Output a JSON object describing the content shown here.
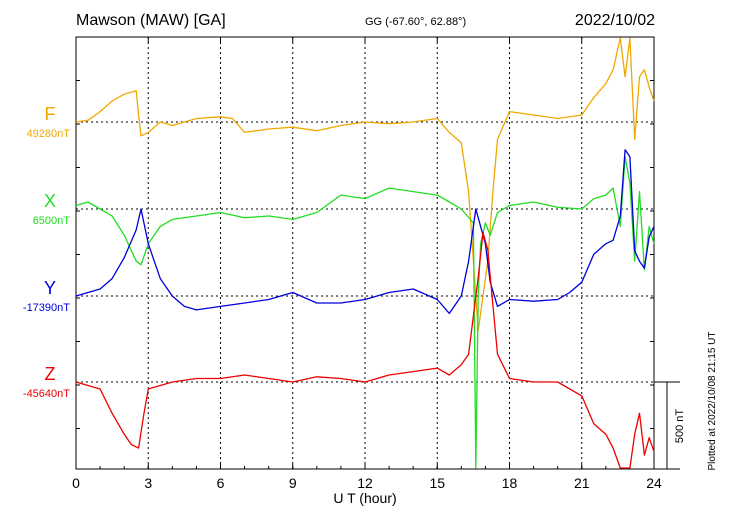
{
  "chart_data": {
    "type": "line",
    "title": "Mawson (MAW)  [GA]",
    "coords": "GG (-67.60°,  62.88°)",
    "date": "2022/10/02",
    "xlabel": "U T (hour)",
    "xlim": [
      0,
      24
    ],
    "xticks": [
      0,
      3,
      6,
      9,
      12,
      15,
      18,
      21,
      24
    ],
    "grid": true,
    "scale_bar": "500 nT",
    "footer": "Plotted at 2022/10/08 21:15 UT",
    "series": [
      {
        "name": "F",
        "baseline_label": "49280nT",
        "color": "#f0a800",
        "x": [
          0,
          0.5,
          1,
          1.5,
          2,
          2.5,
          2.6,
          2.7,
          3,
          3.5,
          4,
          5,
          6,
          6.5,
          7,
          8,
          9,
          10,
          11,
          12,
          13,
          14,
          15,
          15.5,
          16,
          16.3,
          16.5,
          16.7,
          16.9,
          17.1,
          17.3,
          17.5,
          18,
          19,
          20,
          21,
          21.5,
          22,
          22.3,
          22.6,
          22.8,
          23,
          23.2,
          23.4,
          23.6,
          23.8,
          24
        ],
        "values": [
          0,
          10,
          60,
          120,
          160,
          180,
          40,
          -80,
          -60,
          0,
          -20,
          20,
          30,
          20,
          -60,
          -40,
          -30,
          -50,
          -20,
          0,
          -10,
          0,
          20,
          -60,
          -120,
          -400,
          -800,
          -1200,
          -1000,
          -800,
          -420,
          -100,
          60,
          40,
          20,
          40,
          140,
          220,
          300,
          520,
          260,
          500,
          -100,
          260,
          300,
          200,
          120
        ]
      },
      {
        "name": "X",
        "baseline_label": "6500nT",
        "color": "#22dd22",
        "x": [
          0,
          0.5,
          1,
          1.5,
          2,
          2.5,
          2.7,
          3,
          3.5,
          4,
          5,
          6,
          7,
          8,
          9,
          10,
          11,
          12,
          13,
          14,
          15,
          15.5,
          16,
          16.5,
          16.6,
          16.7,
          16.8,
          17,
          17.2,
          17.5,
          18,
          19,
          20,
          21,
          21.5,
          22,
          22.3,
          22.6,
          22.8,
          23,
          23.2,
          23.4,
          23.6,
          23.8,
          24
        ],
        "values": [
          20,
          40,
          0,
          -40,
          -150,
          -300,
          -320,
          -200,
          -100,
          -60,
          -40,
          -20,
          -50,
          -40,
          -60,
          -20,
          80,
          60,
          120,
          100,
          80,
          40,
          0,
          -80,
          -1600,
          -500,
          -200,
          -80,
          -150,
          -20,
          20,
          40,
          10,
          0,
          60,
          80,
          120,
          -100,
          300,
          150,
          -300,
          100,
          -350,
          -100,
          -200
        ]
      },
      {
        "name": "Y",
        "baseline_label": "-17390nT",
        "color": "#0000dd",
        "x": [
          0,
          0.5,
          1,
          1.5,
          2,
          2.5,
          2.7,
          3,
          3.5,
          4,
          4.5,
          5,
          6,
          7,
          8,
          9,
          10,
          11,
          12,
          13,
          14,
          15,
          15.5,
          16,
          16.3,
          16.6,
          16.8,
          17,
          17.2,
          17.5,
          18,
          19,
          20,
          20.5,
          21,
          21.5,
          22,
          22.3,
          22.6,
          22.8,
          23,
          23.2,
          23.4,
          23.6,
          23.8,
          24
        ],
        "values": [
          0,
          20,
          40,
          100,
          220,
          380,
          500,
          300,
          100,
          0,
          -60,
          -80,
          -60,
          -40,
          -20,
          20,
          -40,
          -40,
          -20,
          20,
          40,
          -20,
          -100,
          0,
          200,
          500,
          400,
          300,
          80,
          -60,
          -20,
          -30,
          -20,
          20,
          80,
          240,
          300,
          320,
          460,
          840,
          800,
          260,
          200,
          160,
          340,
          400
        ]
      },
      {
        "name": "Z",
        "baseline_label": "-45640nT",
        "color": "#ee0000",
        "x": [
          0,
          0.5,
          1,
          1.5,
          2,
          2.3,
          2.6,
          2.8,
          3,
          3.5,
          4,
          5,
          6,
          7,
          8,
          9,
          10,
          11,
          12,
          13,
          14,
          15,
          15.5,
          16,
          16.3,
          16.5,
          16.7,
          16.9,
          17.1,
          17.3,
          17.5,
          18,
          19,
          20,
          21,
          21.5,
          22,
          22.3,
          22.6,
          22.8,
          23,
          23.2,
          23.4,
          23.6,
          23.8,
          24
        ],
        "values": [
          0,
          -20,
          -40,
          -180,
          -300,
          -360,
          -380,
          -200,
          -40,
          -20,
          0,
          20,
          20,
          40,
          20,
          0,
          30,
          20,
          0,
          40,
          60,
          80,
          40,
          100,
          160,
          380,
          600,
          860,
          760,
          460,
          160,
          20,
          0,
          0,
          -80,
          -240,
          -300,
          -380,
          -680,
          -500,
          -600,
          -300,
          -180,
          -420,
          -320,
          -400
        ]
      }
    ]
  }
}
